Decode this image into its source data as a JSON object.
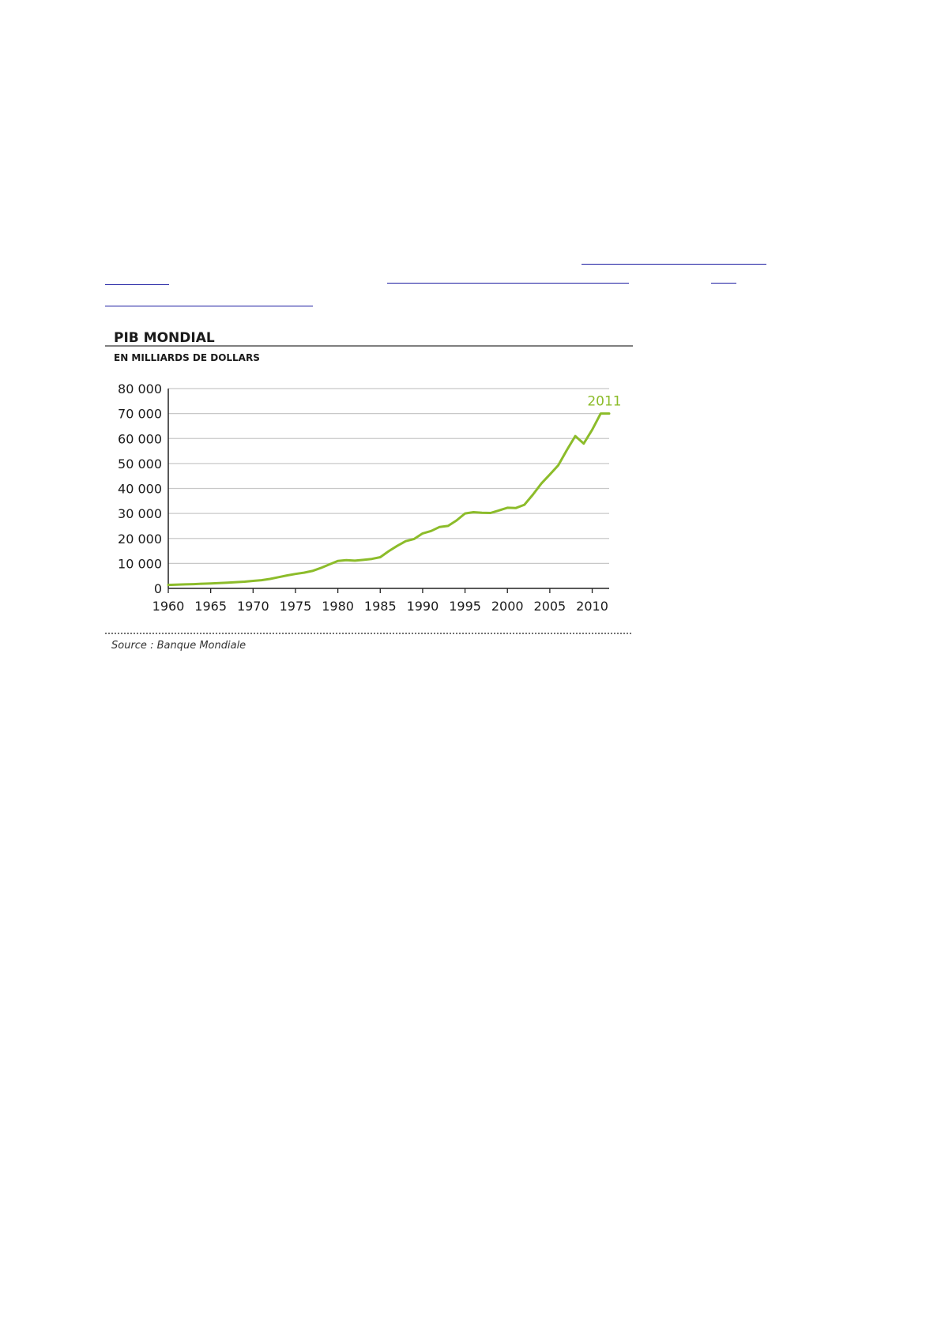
{
  "chart_data": {
    "type": "line",
    "title": "PIB MONDIAL",
    "subtitle": "EN MILLIARDS DE DOLLARS",
    "source": "Source : Banque Mondiale",
    "xlabel": "",
    "ylabel": "",
    "xlim": [
      1960,
      2012
    ],
    "ylim": [
      0,
      80000
    ],
    "grid": true,
    "x_ticks": [
      1960,
      1965,
      1970,
      1975,
      1980,
      1985,
      1990,
      1995,
      2000,
      2005,
      2010
    ],
    "x_tick_labels": [
      "1960",
      "1965",
      "1970",
      "1975",
      "1980",
      "1985",
      "1990",
      "1995",
      "2000",
      "2005",
      "2010"
    ],
    "y_ticks": [
      0,
      10000,
      20000,
      30000,
      40000,
      50000,
      60000,
      70000,
      80000
    ],
    "y_tick_labels": [
      "0",
      "10 000",
      "20 000",
      "30 000",
      "40 000",
      "50 000",
      "60 000",
      "70 000",
      "80 000"
    ],
    "annotation": "2011",
    "series": [
      {
        "color": "#8cbc2a",
        "x": [
          1960,
          1961,
          1962,
          1963,
          1964,
          1965,
          1966,
          1967,
          1968,
          1969,
          1970,
          1971,
          1972,
          1973,
          1974,
          1975,
          1976,
          1977,
          1978,
          1979,
          1980,
          1981,
          1982,
          1983,
          1984,
          1985,
          1986,
          1987,
          1988,
          1989,
          1990,
          1991,
          1992,
          1993,
          1994,
          1995,
          1996,
          1997,
          1998,
          1999,
          2000,
          2001,
          2002,
          2003,
          2004,
          2005,
          2006,
          2007,
          2008,
          2009,
          2010,
          2011,
          2012
        ],
        "y": [
          1400,
          1500,
          1600,
          1700,
          1850,
          2000,
          2150,
          2300,
          2500,
          2700,
          3000,
          3300,
          3800,
          4500,
          5200,
          5800,
          6300,
          7000,
          8200,
          9600,
          11000,
          11300,
          11100,
          11400,
          11800,
          12500,
          14900,
          17000,
          18900,
          19800,
          22000,
          23000,
          24600,
          25000,
          27200,
          30000,
          30500,
          30300,
          30200,
          31200,
          32300,
          32200,
          33500,
          37500,
          42000,
          45600,
          49300,
          55300,
          61000,
          58000,
          63500,
          70000,
          70000
        ]
      }
    ]
  },
  "colors": {
    "line": "#8cbc2a",
    "grid": "#c8c8c8",
    "text": "#1a1a1a",
    "link": "#1a1aa0"
  }
}
